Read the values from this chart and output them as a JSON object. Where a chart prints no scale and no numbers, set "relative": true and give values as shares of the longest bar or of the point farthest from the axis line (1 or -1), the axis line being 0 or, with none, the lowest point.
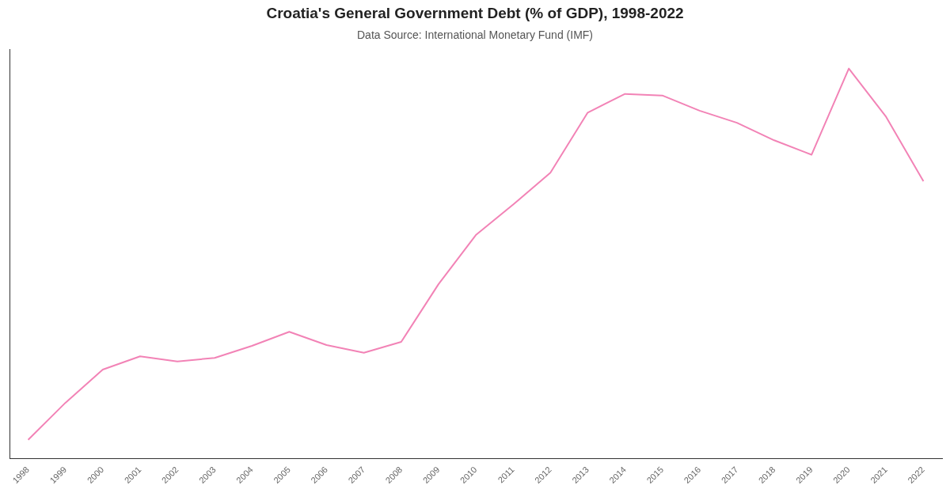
{
  "chart_data": {
    "type": "line",
    "title": "Croatia's General Government Debt (% of GDP), 1998-2022",
    "subtitle": "Data Source: International Monetary Fund (IMF)",
    "relative": true,
    "grid": false,
    "legend": false,
    "marker": "none",
    "line_style": "solid",
    "categories": [
      "1998",
      "1999",
      "2000",
      "2001",
      "2002",
      "2003",
      "2004",
      "2005",
      "2006",
      "2007",
      "2008",
      "2009",
      "2010",
      "2011",
      "2012",
      "2013",
      "2014",
      "2015",
      "2016",
      "2017",
      "2018",
      "2019",
      "2020",
      "2021",
      "2022"
    ],
    "series": [
      {
        "color": "#f283b6",
        "values": [
          0.048,
          0.143,
          0.228,
          0.262,
          0.249,
          0.258,
          0.289,
          0.325,
          0.291,
          0.271,
          0.299,
          0.447,
          0.573,
          0.651,
          0.733,
          0.887,
          0.935,
          0.931,
          0.892,
          0.861,
          0.816,
          0.779,
          1,
          0.876,
          0.711
        ]
      }
    ]
  }
}
